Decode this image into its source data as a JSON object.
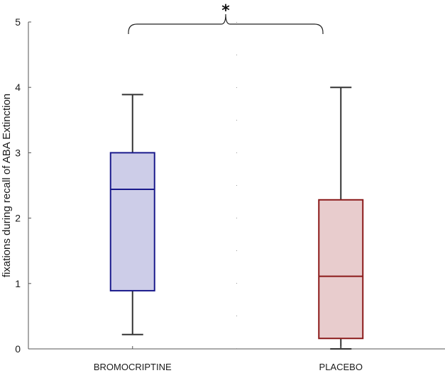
{
  "chart_data": {
    "type": "box",
    "title": "",
    "xlabel": "",
    "ylabel": "fixations during recall of ABA Extinction",
    "ylim": [
      0,
      5
    ],
    "yticks": [
      "0",
      "1",
      "2",
      "3",
      "4",
      "5"
    ],
    "categories": [
      "BROMOCRIPTINE",
      "PLACEBO"
    ],
    "boxes": [
      {
        "category": "BROMOCRIPTINE",
        "whisker_low": 0.22,
        "q1": 0.89,
        "median": 2.44,
        "q3": 3.0,
        "whisker_high": 3.89,
        "edge_color": "#1a1a8c",
        "fill_color": "#cdcde8"
      },
      {
        "category": "PLACEBO",
        "whisker_low": 0.0,
        "q1": 0.16,
        "median": 1.11,
        "q3": 2.28,
        "whisker_high": 4.0,
        "edge_color": "#8b1a1a",
        "fill_color": "#e8cccd"
      }
    ],
    "significance": {
      "label": "*",
      "between": [
        "BROMOCRIPTINE",
        "PLACEBO"
      ]
    },
    "grid": false
  }
}
